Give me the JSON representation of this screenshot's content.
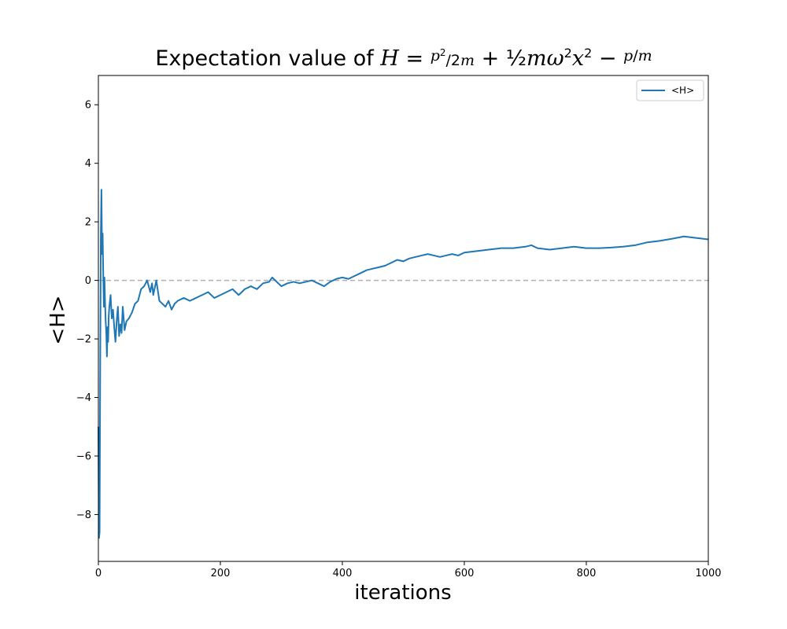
{
  "chart_data": {
    "type": "line",
    "title_prefix": "Expectation value  of ",
    "title_formula": "H = p²/2m + ½mω²x² − p/m",
    "xlabel": "iterations",
    "ylabel": "<H>",
    "xlim": [
      0,
      1000
    ],
    "ylim": [
      -9.6,
      7.0
    ],
    "xticks": [
      0,
      200,
      400,
      600,
      800,
      1000
    ],
    "yticks": [
      -8,
      -6,
      -4,
      -2,
      0,
      2,
      4,
      6
    ],
    "xtick_labels": [
      "0",
      "200",
      "400",
      "600",
      "800",
      "1000"
    ],
    "ytick_labels": [
      "−8",
      "−6",
      "−4",
      "−2",
      "0",
      "2",
      "4",
      "6"
    ],
    "grid": false,
    "legend_position": "top-right",
    "reference_line": {
      "y": 0,
      "style": "dashed",
      "color": "#b0b0b0"
    },
    "series": [
      {
        "name": "<H>",
        "color": "#1f77b4",
        "x": [
          0,
          1,
          2,
          3,
          4,
          5,
          6,
          7,
          8,
          9,
          10,
          11,
          12,
          13,
          14,
          15,
          16,
          17,
          18,
          20,
          22,
          24,
          26,
          28,
          30,
          32,
          34,
          36,
          38,
          40,
          43,
          46,
          50,
          55,
          60,
          65,
          70,
          75,
          80,
          85,
          88,
          90,
          93,
          95,
          100,
          105,
          110,
          115,
          120,
          125,
          130,
          140,
          150,
          160,
          170,
          180,
          190,
          200,
          210,
          220,
          230,
          240,
          250,
          260,
          270,
          280,
          285,
          290,
          300,
          310,
          320,
          330,
          340,
          350,
          360,
          370,
          380,
          390,
          400,
          410,
          420,
          430,
          440,
          450,
          460,
          470,
          480,
          490,
          500,
          510,
          520,
          530,
          540,
          550,
          560,
          570,
          580,
          590,
          600,
          620,
          640,
          660,
          680,
          700,
          710,
          720,
          740,
          760,
          780,
          800,
          820,
          840,
          860,
          880,
          900,
          920,
          940,
          960,
          980,
          1000
        ],
        "y": [
          -5.0,
          -8.8,
          -8.6,
          -3.0,
          1.5,
          3.1,
          0.9,
          1.6,
          0.2,
          -0.9,
          0.1,
          -0.8,
          -1.4,
          -1.8,
          -2.6,
          -1.6,
          -2.1,
          -1.2,
          -0.9,
          -0.5,
          -1.3,
          -1.0,
          -1.6,
          -2.1,
          -1.4,
          -0.9,
          -1.9,
          -1.5,
          -1.8,
          -0.9,
          -1.7,
          -1.4,
          -1.3,
          -1.1,
          -0.8,
          -0.7,
          -0.3,
          -0.2,
          0.0,
          -0.4,
          -0.1,
          -0.5,
          -0.2,
          0.0,
          -0.7,
          -0.8,
          -0.9,
          -0.7,
          -1.0,
          -0.8,
          -0.7,
          -0.6,
          -0.7,
          -0.6,
          -0.5,
          -0.4,
          -0.6,
          -0.5,
          -0.4,
          -0.3,
          -0.5,
          -0.3,
          -0.2,
          -0.3,
          -0.1,
          -0.05,
          0.1,
          0.0,
          -0.2,
          -0.1,
          -0.05,
          -0.1,
          -0.05,
          0.0,
          -0.1,
          -0.2,
          -0.05,
          0.05,
          0.1,
          0.05,
          0.15,
          0.25,
          0.35,
          0.4,
          0.45,
          0.5,
          0.6,
          0.7,
          0.65,
          0.75,
          0.8,
          0.85,
          0.9,
          0.85,
          0.8,
          0.85,
          0.9,
          0.85,
          0.95,
          1.0,
          1.05,
          1.1,
          1.1,
          1.15,
          1.2,
          1.1,
          1.05,
          1.1,
          1.15,
          1.1,
          1.1,
          1.12,
          1.15,
          1.2,
          1.3,
          1.35,
          1.42,
          1.5,
          1.45,
          1.4
        ]
      }
    ]
  }
}
